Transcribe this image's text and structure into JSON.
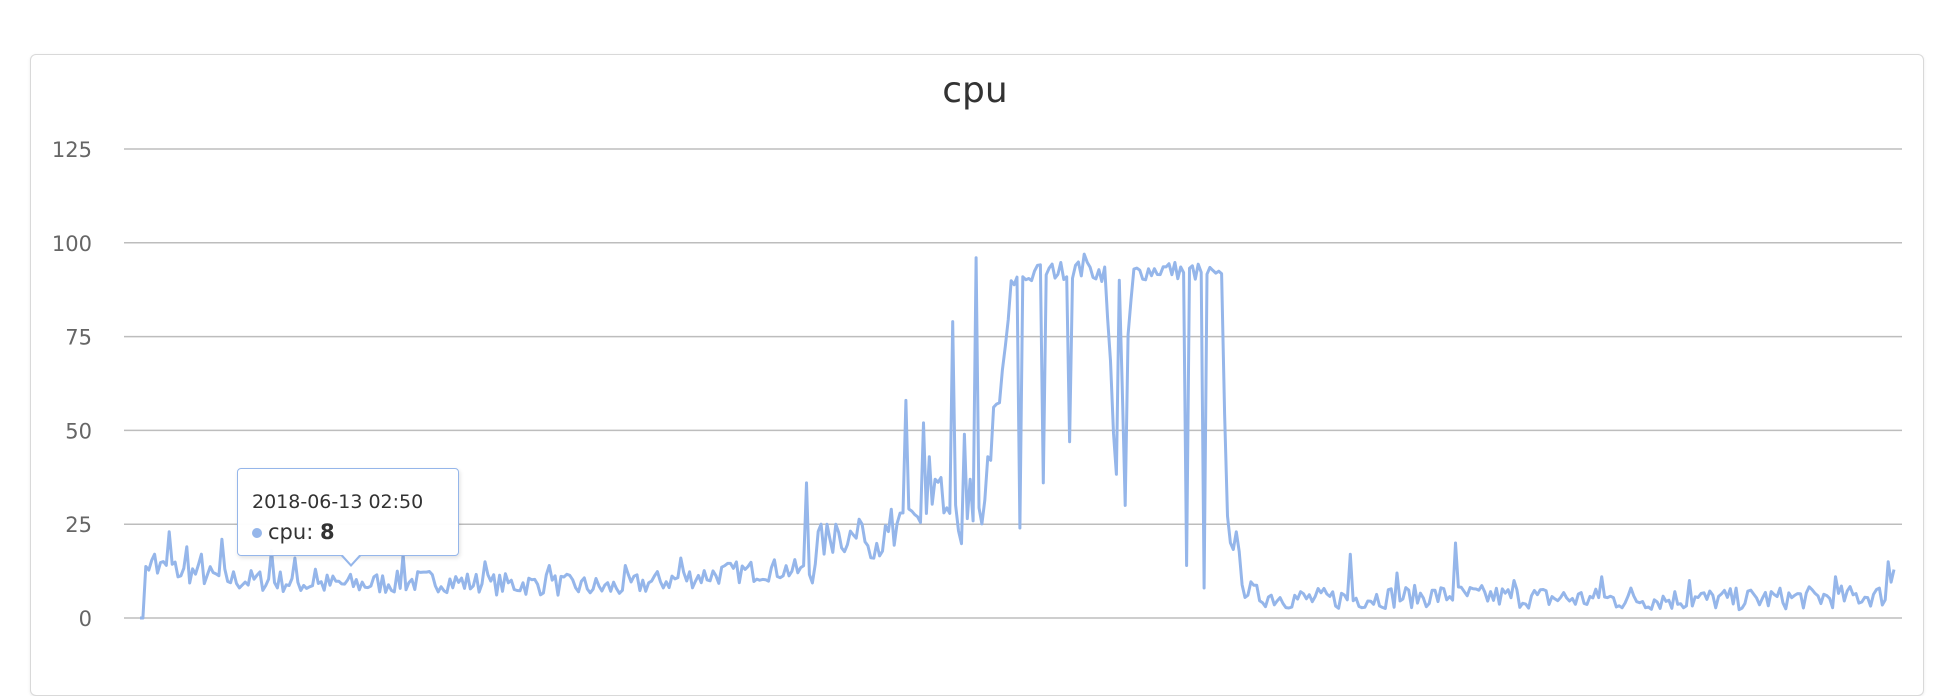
{
  "colors": {
    "series": "#95b6ea",
    "grid": "#bdbdbd",
    "text": "#333333",
    "axis_text": "#666666"
  },
  "chart_data": {
    "type": "line",
    "title": "cpu",
    "xlabel": "",
    "ylabel": "",
    "ylim": [
      0,
      125
    ],
    "yticks": [
      "0",
      "25",
      "50",
      "75",
      "100",
      "125"
    ],
    "grid": true,
    "legend": "none",
    "series": [
      {
        "name": "cpu",
        "x_index_range": [
          0,
          600
        ],
        "keypoints": [
          [
            0,
            0
          ],
          [
            1,
            0
          ],
          [
            2,
            15
          ],
          [
            6,
            13
          ],
          [
            10,
            14
          ],
          [
            14,
            12
          ],
          [
            18,
            12
          ],
          [
            25,
            11
          ],
          [
            35,
            10
          ],
          [
            45,
            10
          ],
          [
            60,
            9
          ],
          [
            75,
            9
          ],
          [
            100,
            10
          ],
          [
            120,
            9
          ],
          [
            140,
            9
          ],
          [
            160,
            8
          ],
          [
            180,
            10
          ],
          [
            200,
            12
          ],
          [
            220,
            13
          ],
          [
            230,
            12
          ],
          [
            232,
            20
          ],
          [
            240,
            22
          ],
          [
            250,
            21
          ],
          [
            258,
            20
          ],
          [
            264,
            30
          ],
          [
            268,
            24
          ],
          [
            274,
            34
          ],
          [
            278,
            26
          ],
          [
            284,
            22
          ],
          [
            288,
            28
          ],
          [
            292,
            52
          ],
          [
            294,
            56
          ],
          [
            298,
            88
          ],
          [
            306,
            92
          ],
          [
            320,
            93
          ],
          [
            330,
            92
          ],
          [
            334,
            40
          ],
          [
            340,
            92
          ],
          [
            350,
            93
          ],
          [
            365,
            92
          ],
          [
            370,
            90
          ],
          [
            372,
            25
          ],
          [
            374,
            22
          ],
          [
            378,
            8
          ],
          [
            382,
            6
          ],
          [
            400,
            5
          ],
          [
            450,
            6
          ],
          [
            500,
            5
          ],
          [
            550,
            5
          ],
          [
            598,
            6
          ],
          [
            600,
            14
          ]
        ],
        "spikes": [
          [
            5,
            17
          ],
          [
            10,
            23
          ],
          [
            16,
            19
          ],
          [
            21,
            17
          ],
          [
            28,
            21
          ],
          [
            45,
            18
          ],
          [
            53,
            16
          ],
          [
            60,
            13
          ],
          [
            90,
            17
          ],
          [
            118,
            15
          ],
          [
            140,
            14
          ],
          [
            166,
            14
          ],
          [
            185,
            16
          ],
          [
            228,
            36
          ],
          [
            238,
            25
          ],
          [
            247,
            25
          ],
          [
            257,
            29
          ],
          [
            262,
            58
          ],
          [
            268,
            52
          ],
          [
            270,
            43
          ],
          [
            272,
            37
          ],
          [
            275,
            28
          ],
          [
            278,
            79
          ],
          [
            282,
            94
          ],
          [
            286,
            96
          ],
          [
            282,
            49
          ],
          [
            284,
            37
          ],
          [
            301,
            24
          ],
          [
            307,
            94
          ],
          [
            309,
            36
          ],
          [
            318,
            47
          ],
          [
            323,
            97
          ],
          [
            335,
            90
          ],
          [
            337,
            30
          ],
          [
            358,
            14
          ],
          [
            364,
            8
          ],
          [
            414,
            17
          ],
          [
            430,
            12
          ],
          [
            450,
            20
          ],
          [
            470,
            10
          ],
          [
            500,
            11
          ],
          [
            510,
            8
          ],
          [
            530,
            10
          ],
          [
            580,
            11
          ],
          [
            598,
            15
          ]
        ]
      }
    ]
  },
  "tooltip": {
    "date": "2018-06-13 02:50",
    "series_name": "cpu",
    "separator": ": ",
    "value": "8"
  }
}
